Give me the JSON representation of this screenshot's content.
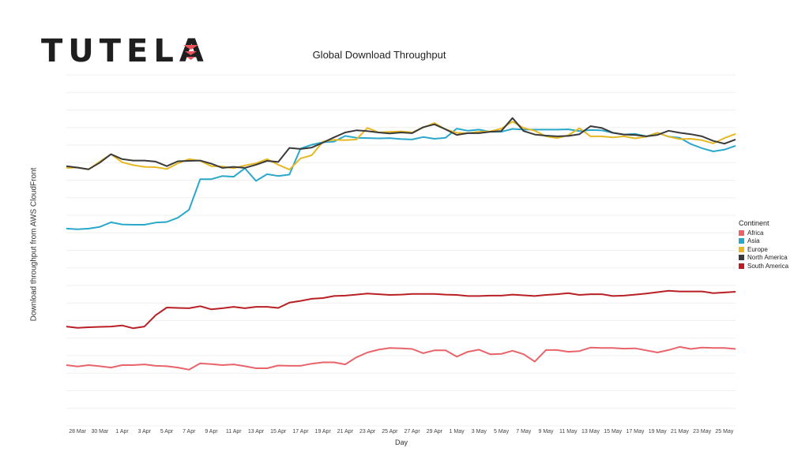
{
  "logo": {
    "text": "TUTELA",
    "mark_color": "#e8545a"
  },
  "chart_data": {
    "type": "line",
    "title": "Global Download Throughput",
    "xlabel": "Day",
    "ylabel": "Download throughput from AWS CloudFront",
    "ylim": [
      0,
      100
    ],
    "grid": true,
    "y_tick_labels_visible": false,
    "legend_title": "Continent",
    "legend_position": "right",
    "x": [
      "27 Mar",
      "28 Mar",
      "29 Mar",
      "30 Mar",
      "31 Mar",
      "1 Apr",
      "2 Apr",
      "3 Apr",
      "4 Apr",
      "5 Apr",
      "6 Apr",
      "7 Apr",
      "8 Apr",
      "9 Apr",
      "10 Apr",
      "11 Apr",
      "12 Apr",
      "13 Apr",
      "14 Apr",
      "15 Apr",
      "16 Apr",
      "17 Apr",
      "18 Apr",
      "19 Apr",
      "20 Apr",
      "21 Apr",
      "22 Apr",
      "23 Apr",
      "24 Apr",
      "25 Apr",
      "26 Apr",
      "27 Apr",
      "28 Apr",
      "29 Apr",
      "30 Apr",
      "1 May",
      "2 May",
      "3 May",
      "4 May",
      "5 May",
      "6 May",
      "7 May",
      "8 May",
      "9 May",
      "10 May",
      "11 May",
      "12 May",
      "13 May",
      "14 May",
      "15 May",
      "16 May",
      "17 May",
      "18 May",
      "19 May",
      "20 May",
      "21 May",
      "22 May",
      "23 May",
      "24 May",
      "25 May",
      "26 May"
    ],
    "tick_labels": [
      "28 Mar",
      "30 Mar",
      "1 Apr",
      "3 Apr",
      "5 Apr",
      "7 Apr",
      "9 Apr",
      "11 Apr",
      "13 Apr",
      "15 Apr",
      "17 Apr",
      "19 Apr",
      "21 Apr",
      "23 Apr",
      "25 Apr",
      "27 Apr",
      "29 Apr",
      "1 May",
      "3 May",
      "5 May",
      "7 May",
      "9 May",
      "11 May",
      "13 May",
      "15 May",
      "17 May",
      "19 May",
      "21 May",
      "23 May",
      "25 May"
    ],
    "series": [
      {
        "name": "Africa",
        "color": "#e8646a",
        "values": [
          17.3,
          16.9,
          17.3,
          17.0,
          16.6,
          17.3,
          17.3,
          17.5,
          17.1,
          17.0,
          16.6,
          16.0,
          17.8,
          17.6,
          17.3,
          17.5,
          17.0,
          16.4,
          16.4,
          17.2,
          17.1,
          17.1,
          17.7,
          18.1,
          18.1,
          17.5,
          19.5,
          20.9,
          21.7,
          22.2,
          22.1,
          21.9,
          20.7,
          21.5,
          21.5,
          19.7,
          21.1,
          21.7,
          20.4,
          20.5,
          21.4,
          20.4,
          18.3,
          21.6,
          21.6,
          21.1,
          21.3,
          22.3,
          22.2,
          22.2,
          22.0,
          22.1,
          21.5,
          20.9,
          21.6,
          22.5,
          21.9,
          22.3,
          22.2,
          22.2,
          21.9
        ]
      },
      {
        "name": "Asia",
        "color": "#29a8cc",
        "values": [
          56.2,
          56.0,
          56.2,
          56.7,
          58.0,
          57.4,
          57.3,
          57.3,
          57.9,
          58.1,
          59.3,
          61.6,
          70.3,
          70.3,
          71.2,
          71.0,
          73.4,
          69.8,
          71.7,
          71.2,
          71.6,
          79.0,
          80.1,
          80.8,
          81.0,
          82.6,
          82.1,
          82.0,
          81.9,
          82.0,
          81.7,
          81.6,
          82.3,
          81.8,
          82.1,
          84.7,
          84.1,
          84.4,
          83.8,
          83.8,
          84.6,
          84.4,
          84.4,
          84.4,
          84.4,
          84.5,
          84.0,
          84.3,
          84.2,
          83.5,
          83.0,
          83.2,
          82.5,
          83.5,
          82.4,
          82.1,
          80.3,
          79.1,
          78.2,
          78.7,
          79.8
        ]
      },
      {
        "name": "Europe",
        "color": "#e6b924",
        "values": [
          73.5,
          73.6,
          73.1,
          75.3,
          77.4,
          75.1,
          74.3,
          73.8,
          73.7,
          73.2,
          74.8,
          76.0,
          75.5,
          74.0,
          73.9,
          73.4,
          74.2,
          74.8,
          76.0,
          74.4,
          73.0,
          76.2,
          77.1,
          81.0,
          81.5,
          81.4,
          81.6,
          84.9,
          83.6,
          83.8,
          83.9,
          83.6,
          85.0,
          86.3,
          84.5,
          83.5,
          83.4,
          83.8,
          83.9,
          84.7,
          86.7,
          84.9,
          84.1,
          82.5,
          82.0,
          82.8,
          84.8,
          82.5,
          82.5,
          82.2,
          82.5,
          81.9,
          82.4,
          83.5,
          82.4,
          81.7,
          81.8,
          81.4,
          80.5,
          82.0,
          83.2
        ]
      },
      {
        "name": "North America",
        "color": "#3a3a3a",
        "values": [
          74.0,
          73.6,
          73.1,
          75.0,
          77.4,
          76.0,
          75.6,
          75.6,
          75.3,
          74.0,
          75.4,
          75.5,
          75.6,
          74.7,
          73.5,
          73.8,
          73.5,
          74.4,
          75.5,
          75.2,
          79.2,
          78.9,
          79.3,
          80.7,
          82.2,
          83.6,
          84.2,
          84.0,
          83.6,
          83.3,
          83.6,
          83.4,
          85.1,
          85.9,
          84.5,
          82.9,
          83.4,
          83.4,
          83.8,
          84.0,
          87.7,
          84.0,
          83.0,
          82.7,
          82.5,
          82.6,
          83.1,
          85.4,
          84.9,
          83.5,
          83.0,
          82.9,
          82.5,
          82.9,
          84.1,
          83.5,
          83.1,
          82.5,
          81.2,
          80.4,
          81.6
        ]
      },
      {
        "name": "South America",
        "color": "#b82025",
        "values": [
          28.3,
          27.9,
          28.1,
          28.2,
          28.3,
          28.6,
          27.8,
          28.3,
          31.5,
          33.7,
          33.6,
          33.5,
          34.1,
          33.2,
          33.5,
          33.9,
          33.5,
          33.9,
          33.9,
          33.6,
          35.1,
          35.6,
          36.2,
          36.4,
          37.0,
          37.1,
          37.4,
          37.7,
          37.5,
          37.3,
          37.4,
          37.6,
          37.6,
          37.6,
          37.4,
          37.3,
          37.0,
          37.0,
          37.1,
          37.1,
          37.4,
          37.2,
          37.0,
          37.3,
          37.5,
          37.8,
          37.3,
          37.5,
          37.5,
          37.0,
          37.1,
          37.4,
          37.7,
          38.1,
          38.5,
          38.3,
          38.3,
          38.3,
          37.8,
          38.0,
          38.2
        ]
      }
    ]
  }
}
